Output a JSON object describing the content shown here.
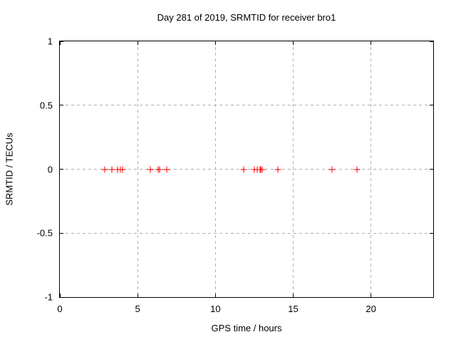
{
  "chart_data": {
    "type": "scatter",
    "title": "Day 281 of 2019, SRMTID for receiver bro1",
    "xlabel": "GPS time / hours",
    "ylabel": "SRMTID / TECUs",
    "xlim": [
      0,
      24
    ],
    "ylim": [
      -1,
      1
    ],
    "xticks": [
      0,
      5,
      10,
      15,
      20
    ],
    "xtick_labels": [
      "0",
      "5",
      "10",
      "15",
      "20"
    ],
    "yticks": [
      -1,
      -0.5,
      0,
      0.5,
      1
    ],
    "ytick_labels": [
      "-1",
      "-0.5",
      "0",
      "0.5",
      "1"
    ],
    "grid": true,
    "grid_style": "dashed",
    "grid_color": "#b0b0b0",
    "border_color": "#000000",
    "background_color": "#ffffff",
    "marker": "plus",
    "marker_color": "#ff0000",
    "legend": "none",
    "series": [
      {
        "name": "SRMTID",
        "x": [
          2.9,
          3.35,
          3.7,
          3.9,
          4.05,
          5.8,
          6.3,
          6.4,
          6.85,
          11.8,
          12.5,
          12.7,
          12.85,
          12.92,
          13.0,
          14.0,
          17.5,
          19.1
        ],
        "y": [
          0,
          0,
          0,
          0,
          0,
          0,
          0,
          0,
          0,
          0,
          0,
          0,
          0,
          0,
          0,
          0,
          0,
          0
        ]
      }
    ]
  }
}
